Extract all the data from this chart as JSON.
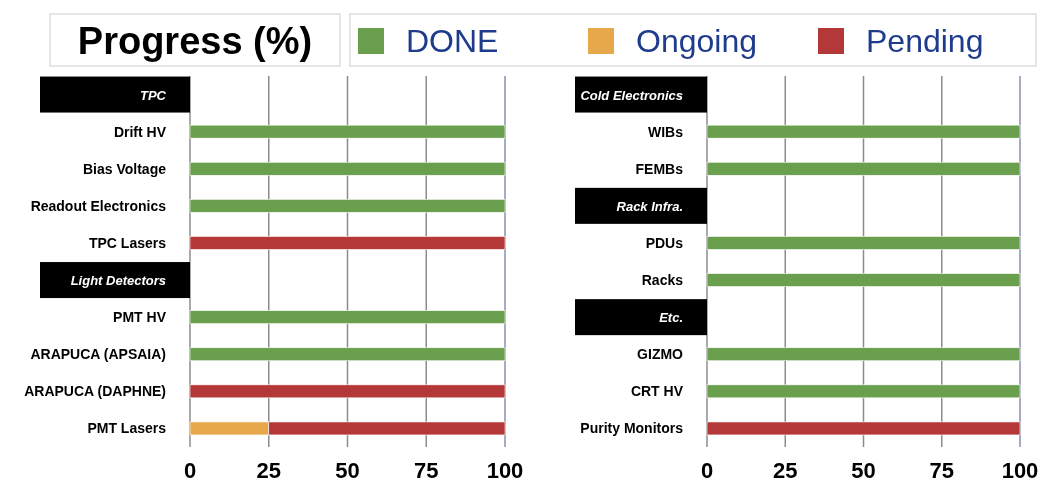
{
  "chart_data": [
    {
      "type": "bar",
      "orientation": "horizontal",
      "stacked": true,
      "title": "Progress (%)",
      "legend": "top",
      "grid": "x",
      "xlim": [
        0,
        100
      ],
      "xticks": [
        0,
        25,
        50,
        75,
        100
      ],
      "categories": [
        "TPC",
        "Drift HV",
        "Bias Voltage",
        "Readout Electronics",
        "TPC Lasers",
        "Light Detectors",
        "PMT HV",
        "ARAPUCA (APSAIA)",
        "ARAPUCA (DAPHNE)",
        "PMT Lasers"
      ],
      "series": [
        {
          "name": "DONE",
          "color": "#6a9f4e",
          "values": [
            null,
            100,
            100,
            100,
            null,
            null,
            100,
            100,
            null,
            null
          ]
        },
        {
          "name": "Ongoing",
          "color": "#e6a84a",
          "values": [
            null,
            null,
            null,
            null,
            null,
            null,
            null,
            null,
            null,
            25
          ]
        },
        {
          "name": "Pending",
          "color": "#b53838",
          "values": [
            null,
            null,
            null,
            null,
            100,
            null,
            null,
            null,
            100,
            75
          ]
        }
      ]
    },
    {
      "type": "bar",
      "orientation": "horizontal",
      "stacked": true,
      "grid": "x",
      "xlim": [
        0,
        100
      ],
      "xticks": [
        0,
        25,
        50,
        75,
        100
      ],
      "categories": [
        "Cold Electronics",
        "WIBs",
        "FEMBs",
        "Rack Infra.",
        "PDUs",
        "Racks",
        "Etc.",
        "GIZMO",
        "CRT HV",
        "Purity Monitors"
      ],
      "series": [
        {
          "color": "#6a9f4e",
          "values": [
            null,
            100,
            100,
            null,
            100,
            100,
            null,
            100,
            100,
            null
          ]
        },
        {
          "color": "#b53838",
          "values": [
            null,
            null,
            null,
            null,
            null,
            null,
            null,
            null,
            null,
            100
          ]
        }
      ]
    }
  ]
}
